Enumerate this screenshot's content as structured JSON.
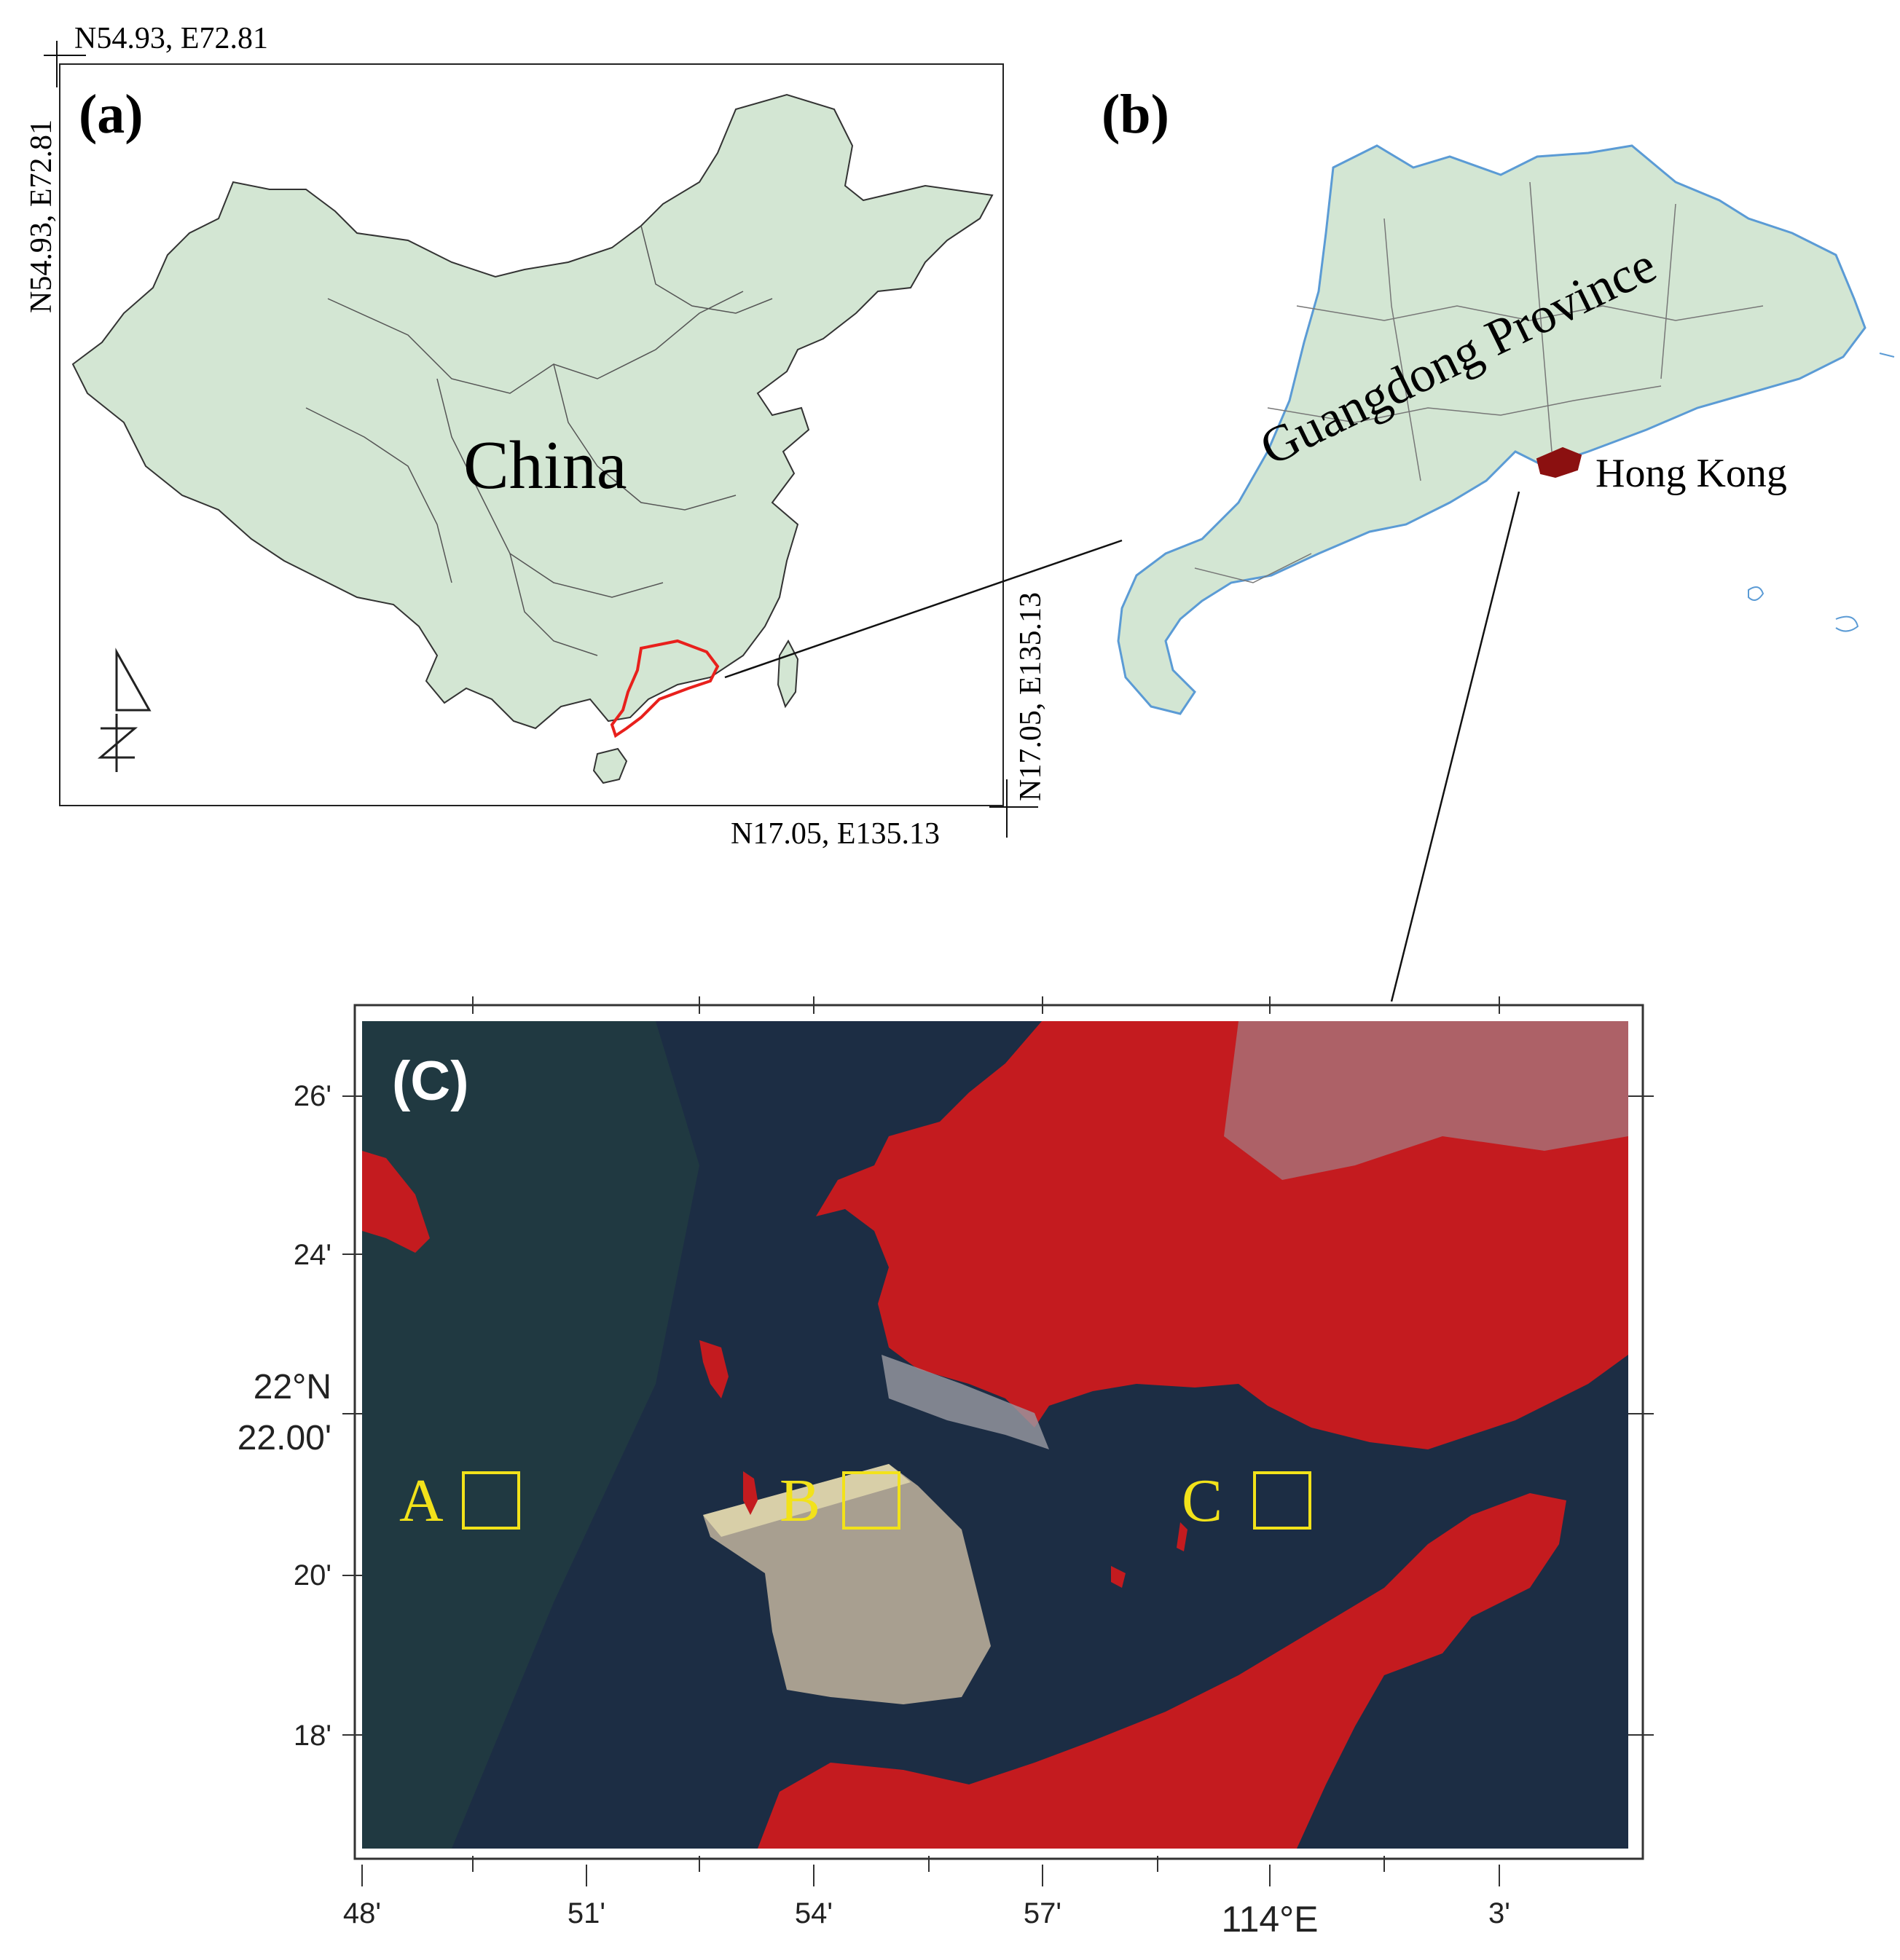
{
  "panel_a": {
    "label": "(a)",
    "country_label": "China",
    "corner_top_left_h": "N54.93, E72.81",
    "corner_top_left_v": "N54.93, E72.81",
    "corner_bottom_right_h": "N17.05, E135.13",
    "corner_bottom_right_v": "N17.05, E135.13",
    "north_arrow": "north-arrow-icon",
    "highlight_color": "#e8201c",
    "land_color": "#d3e6d3"
  },
  "panel_b": {
    "label": "(b)",
    "province_label": "Guangdong Province",
    "city_label": "Hong Kong",
    "land_color": "#d3e6d3",
    "coast_color": "#5b9bd5",
    "hk_color": "#8b1010"
  },
  "panel_c": {
    "label": "(C)",
    "sea_color": "#1c2d44",
    "vegetation_color": "#c41b1f",
    "urban_color": "#9a9aa2",
    "marker_color": "#f2e21a",
    "sites": [
      {
        "label": "A"
      },
      {
        "label": "B"
      },
      {
        "label": "C"
      }
    ],
    "y_ticks": [
      "26'",
      "24'",
      "22°N",
      "22.00'",
      "20'",
      "18'"
    ],
    "x_ticks": [
      "48'",
      "51'",
      "54'",
      "57'",
      "114°E",
      "3'"
    ]
  }
}
